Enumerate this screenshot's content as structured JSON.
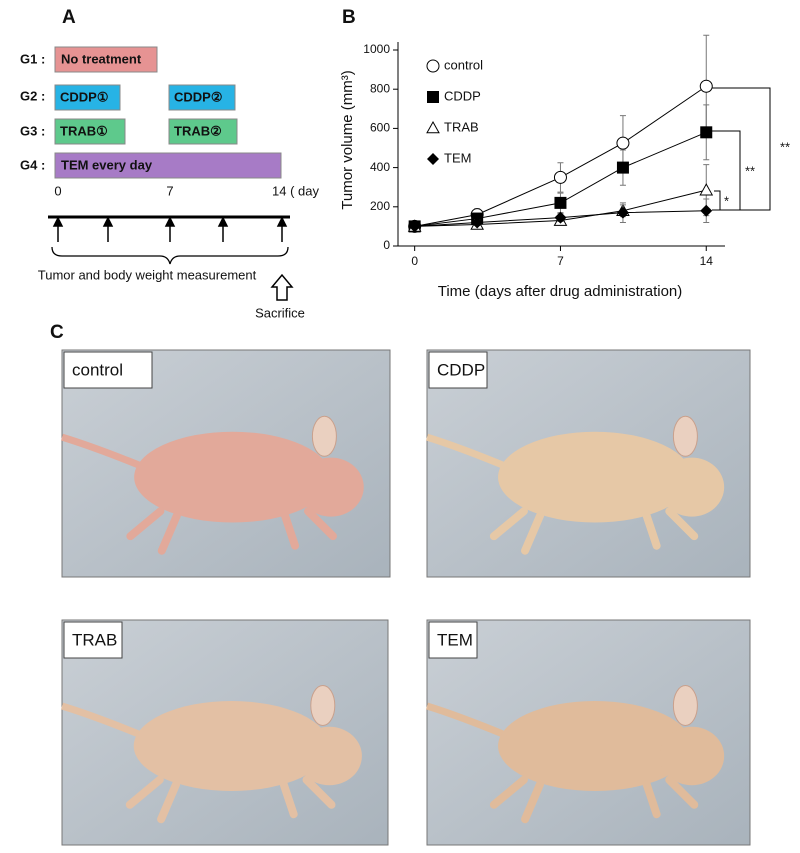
{
  "panel_a": {
    "panel_label": "A",
    "rows": [
      {
        "label": "G1 :",
        "boxes": [
          "No treatment"
        ]
      },
      {
        "label": "G2 :",
        "boxes": [
          "CDDP①",
          "CDDP②"
        ]
      },
      {
        "label": "G3 :",
        "boxes": [
          "TRAB①",
          "TRAB②"
        ]
      },
      {
        "label": "G4 :",
        "boxes": [
          "TEM every day"
        ]
      }
    ],
    "timeline_labels": [
      "0",
      "7",
      "14 ( day"
    ],
    "measurement": "Tumor and body weight measurement",
    "sacrifice": "Sacrifice"
  },
  "chart_data": {
    "type": "line",
    "panel_label": "B",
    "xlabel": "Time (days after drug administration)",
    "ylabel": "Tumor volume (mm³)",
    "x": [
      0,
      3,
      7,
      10,
      14
    ],
    "xlim": [
      -0.8,
      14.9
    ],
    "xticks": [
      0,
      7,
      14
    ],
    "ylim": [
      0,
      1000
    ],
    "yticks": [
      0,
      200,
      400,
      600,
      800,
      1000
    ],
    "series": [
      {
        "name": "control",
        "color": "#000000",
        "marker": "open-circle",
        "values": [
          100,
          160,
          350,
          525,
          815
        ],
        "errors": [
          0,
          30,
          75,
          140,
          260
        ]
      },
      {
        "name": "CDDP",
        "color": "#000000",
        "marker": "filled-square",
        "values": [
          100,
          140,
          220,
          400,
          580
        ],
        "errors": [
          0,
          25,
          50,
          90,
          140
        ]
      },
      {
        "name": "TRAB",
        "color": "#000000",
        "marker": "open-triangle",
        "values": [
          100,
          110,
          130,
          180,
          285
        ],
        "errors": [
          0,
          15,
          20,
          30,
          130
        ]
      },
      {
        "name": "TEM",
        "color": "#000000",
        "marker": "filled-diamond",
        "values": [
          100,
          120,
          145,
          170,
          180
        ],
        "errors": [
          0,
          15,
          20,
          50,
          60
        ]
      }
    ],
    "annotations": [
      "**",
      "**",
      "*"
    ]
  },
  "panel_c": {
    "panel_label": "C",
    "photos": [
      {
        "label": "control"
      },
      {
        "label": "CDDP"
      },
      {
        "label": "TRAB"
      },
      {
        "label": "TEM"
      }
    ]
  }
}
